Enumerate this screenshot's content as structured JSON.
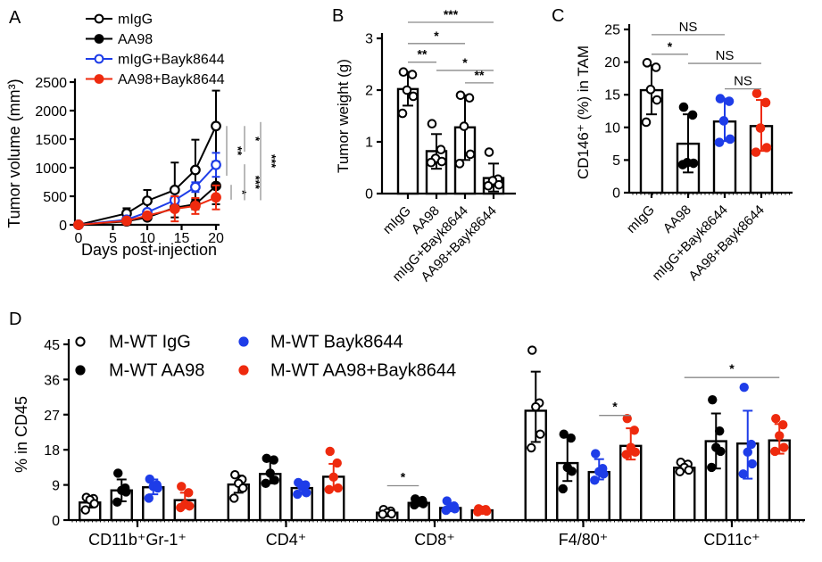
{
  "figure": {
    "panels": [
      {
        "letter": "A"
      },
      {
        "letter": "B"
      },
      {
        "letter": "C"
      },
      {
        "letter": "D"
      }
    ]
  },
  "colors": {
    "black": "#000000",
    "blue": "#1e3de8",
    "red": "#ee2a0e",
    "sig_line": "#8a8a8a"
  },
  "chart_data": [
    {
      "type": "line",
      "panel": "A",
      "xlabel": "Days post-injection",
      "ylabel": "Tumor volume (mm³)",
      "x": [
        0,
        7,
        10,
        14,
        17,
        20
      ],
      "xticks": [
        0,
        5,
        10,
        15,
        20
      ],
      "ylim": [
        0,
        2500
      ],
      "yticks": [
        0,
        500,
        1000,
        1500,
        2000,
        2500
      ],
      "legend_position": "top-left",
      "series": [
        {
          "name": "mIgG",
          "color": "#000000",
          "fill": "open",
          "values": [
            0,
            200,
            420,
            610,
            960,
            1730
          ],
          "err": [
            0,
            90,
            190,
            480,
            530,
            620
          ]
        },
        {
          "name": "AA98",
          "color": "#000000",
          "fill": "solid",
          "values": [
            0,
            60,
            130,
            300,
            360,
            680
          ],
          "err": [
            0,
            25,
            40,
            60,
            90,
            320
          ]
        },
        {
          "name": "mIgG+Bayk8644",
          "color": "#1e3de8",
          "fill": "open",
          "values": [
            0,
            90,
            220,
            430,
            660,
            1050
          ],
          "err": [
            0,
            25,
            45,
            70,
            85,
            210
          ]
        },
        {
          "name": "AA98+Bayk8644",
          "color": "#ee2a0e",
          "fill": "solid",
          "values": [
            0,
            70,
            160,
            280,
            330,
            480
          ],
          "err": [
            0,
            25,
            40,
            220,
            140,
            210
          ]
        }
      ],
      "sig": [
        {
          "label": "**",
          "x_off": 8,
          "v1": 1730,
          "v2": 860
        },
        {
          "label": "*",
          "x_off": 13,
          "v1": 700,
          "v2": 440
        },
        {
          "label": "*",
          "x_off": 28,
          "v1": 1730,
          "v2": 1280
        },
        {
          "label": "***",
          "x_off": 28,
          "v1": 1060,
          "v2": 430
        },
        {
          "label": "***",
          "x_off": 46,
          "v1": 1800,
          "v2": 430
        }
      ]
    },
    {
      "type": "bar",
      "panel": "B",
      "ylabel": "Tumor weight (g)",
      "ylim": [
        0,
        3
      ],
      "yticks": [
        0,
        1,
        2,
        3
      ],
      "categories": [
        "mIgG",
        "AA98",
        "mIgG+Bayk8644",
        "AA98+Bayk8644"
      ],
      "bars": [
        {
          "value": 2.02,
          "err_lo": 1.7,
          "err_hi": 2.35,
          "color": "#000000",
          "fill": "open",
          "points": [
            2.35,
            2.3,
            2.0,
            1.88,
            1.55
          ]
        },
        {
          "value": 0.82,
          "err_lo": 0.48,
          "err_hi": 1.15,
          "color": "#000000",
          "fill": "open",
          "points": [
            1.35,
            0.85,
            0.68,
            0.62,
            0.6
          ]
        },
        {
          "value": 1.28,
          "err_lo": 0.65,
          "err_hi": 1.9,
          "color": "#000000",
          "fill": "open",
          "points": [
            1.9,
            1.85,
            1.3,
            0.76,
            0.58
          ]
        },
        {
          "value": 0.3,
          "err_lo": 0.04,
          "err_hi": 0.58,
          "color": "#000000",
          "fill": "open",
          "points": [
            0.8,
            0.28,
            0.25,
            0.17,
            0.15
          ]
        }
      ],
      "sig": [
        {
          "label": "***",
          "from": 0,
          "to": 3,
          "y": 3.31
        },
        {
          "label": "*",
          "from": 0,
          "to": 2,
          "y": 2.9
        },
        {
          "label": "**",
          "from": 0,
          "to": 1,
          "y": 2.54
        },
        {
          "label": "*",
          "from": 1,
          "to": 3,
          "y": 2.38
        },
        {
          "label": "**",
          "from": 2,
          "to": 3,
          "y": 2.14
        }
      ]
    },
    {
      "type": "bar",
      "panel": "C",
      "ylabel": "CD146⁺ (%) in TAM",
      "ylim": [
        0,
        25
      ],
      "yticks": [
        0,
        5,
        10,
        15,
        20,
        25
      ],
      "categories": [
        "mIgG",
        "AA98",
        "mIgG+Bayk8644",
        "AA98+Bayk8644"
      ],
      "bars": [
        {
          "value": 15.7,
          "err_lo": 12,
          "err_hi": 19.5,
          "color": "#000000",
          "fill": "open",
          "points": [
            19.9,
            19.2,
            15.8,
            14.2,
            10.8
          ]
        },
        {
          "value": 7.5,
          "err_lo": 3.1,
          "err_hi": 12,
          "color": "#000000",
          "fill": "solid",
          "points": [
            13.1,
            11.9,
            4.6,
            4.5,
            4.3
          ]
        },
        {
          "value": 10.9,
          "err_lo": 7.9,
          "err_hi": 14.4,
          "color": "#1e3de8",
          "fill": "solid",
          "points": [
            14.4,
            14.0,
            11.0,
            8.2,
            7.7
          ]
        },
        {
          "value": 10.2,
          "err_lo": 6.4,
          "err_hi": 14.2,
          "color": "#ee2a0e",
          "fill": "solid",
          "points": [
            15.2,
            13.8,
            9.9,
            6.9,
            6.2
          ]
        }
      ],
      "sig": [
        {
          "label": "NS",
          "from": 0,
          "to": 2,
          "y": 24.2
        },
        {
          "label": "*",
          "from": 0,
          "to": 1,
          "y": 21.2
        },
        {
          "label": "NS",
          "from": 1,
          "to": 3,
          "y": 19.8
        },
        {
          "label": "NS",
          "from": 2,
          "to": 3,
          "y": 15.9
        }
      ]
    },
    {
      "type": "grouped-bar",
      "panel": "D",
      "ylabel": "% in CD45",
      "ylim": [
        0,
        45
      ],
      "yticks": [
        0,
        9,
        18,
        27,
        36,
        45
      ],
      "groups": [
        "CD11b⁺Gr-1⁺",
        "CD4⁺",
        "CD8⁺",
        "F4/80⁺",
        "CD11c⁺"
      ],
      "series": [
        {
          "name": "M-WT  IgG",
          "color": "#000000",
          "fill": "open",
          "values": [
            4.5,
            9.1,
            1.9,
            28.0,
            13.4
          ],
          "err_lo": [
            3.2,
            7.0,
            1.4,
            20.0,
            12.4
          ],
          "err_hi": [
            5.8,
            11.4,
            2.4,
            38.0,
            15.0
          ],
          "points": [
            [
              5.8,
              5.5,
              5.2,
              4.2,
              2.6
            ],
            [
              11.6,
              10.4,
              9.4,
              8.2,
              5.6
            ],
            [
              2.7,
              2.3,
              1.9,
              1.6,
              1.5
            ],
            [
              43.5,
              30.0,
              29.0,
              22.0,
              18.5
            ],
            [
              14.8,
              14.3,
              13.5,
              12.8,
              12.4
            ]
          ]
        },
        {
          "name": "M-WT AA98",
          "color": "#000000",
          "fill": "solid",
          "values": [
            7.6,
            11.8,
            4.4,
            14.6,
            20.2
          ],
          "err_lo": [
            4.8,
            9.4,
            3.6,
            10.0,
            13.2
          ],
          "err_hi": [
            10.4,
            15.2,
            5.2,
            21.5,
            27.3
          ],
          "points": [
            [
              12.0,
              8.2,
              7.6,
              7.2,
              4.6
            ],
            [
              15.8,
              15.4,
              12.0,
              10.2,
              9.4
            ],
            [
              5.4,
              5.0,
              4.6,
              4.2,
              3.9
            ],
            [
              22.0,
              21.0,
              13.5,
              12.5,
              8.0
            ],
            [
              30.8,
              22.8,
              18.6,
              17.6,
              13.5
            ]
          ]
        },
        {
          "name": "M-WT Bayk8644",
          "color": "#1e3de8",
          "fill": "solid",
          "values": [
            8.4,
            8.2,
            3.1,
            12.3,
            19.6
          ],
          "err_lo": [
            6.6,
            6.8,
            2.4,
            10.4,
            10.6
          ],
          "err_hi": [
            10.4,
            9.8,
            4.3,
            15.6,
            28.0
          ],
          "points": [
            [
              10.5,
              9.0,
              8.6,
              8.2,
              5.6
            ],
            [
              9.6,
              9.0,
              8.6,
              7.0,
              6.6
            ],
            [
              4.9,
              3.6,
              3.2,
              2.9,
              2.5
            ],
            [
              17.0,
              13.2,
              12.4,
              11.8,
              10.2
            ],
            [
              34.0,
              19.4,
              17.4,
              14.4,
              11.8
            ]
          ]
        },
        {
          "name": "M-WT AA98+Bayk8644",
          "color": "#ee2a0e",
          "fill": "solid",
          "values": [
            5.1,
            11.1,
            2.5,
            19.0,
            20.4
          ],
          "err_lo": [
            3.2,
            7.8,
            2.0,
            15.5,
            17.0
          ],
          "err_hi": [
            7.0,
            14.4,
            3.0,
            23.5,
            24.6
          ],
          "points": [
            [
              8.6,
              7.0,
              4.0,
              3.6,
              3.2
            ],
            [
              17.6,
              14.6,
              11.0,
              8.2,
              7.8
            ],
            [
              2.9,
              2.7,
              2.5,
              2.3,
              2.1
            ],
            [
              26.0,
              23.0,
              18.6,
              17.4,
              16.8
            ],
            [
              26.0,
              24.4,
              21.6,
              18.6,
              17.6
            ]
          ]
        }
      ],
      "sig": [
        {
          "label": "*",
          "group": 2,
          "bars": [
            0,
            1
          ],
          "y": 8.8
        },
        {
          "label": "*",
          "group": 3,
          "bars": [
            2,
            3
          ],
          "y": 26.8
        },
        {
          "label": "*",
          "group": 4,
          "bars": [
            0,
            3
          ],
          "y": 36.5
        }
      ]
    }
  ]
}
